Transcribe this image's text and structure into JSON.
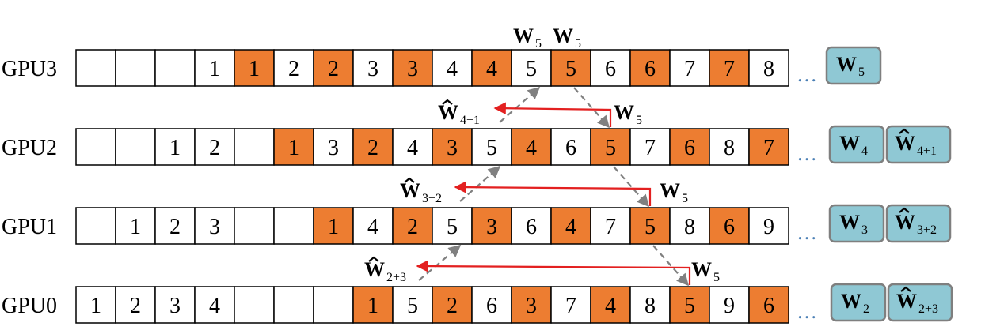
{
  "colors": {
    "orange": "#ed7d31",
    "white": "#ffffff",
    "teal_box": "#8fc8d4",
    "box_border": "#7f7f7f",
    "red_arrow": "#e32020",
    "gray_arrow": "#808080",
    "dots": "#4a7fb5"
  },
  "rows": [
    {
      "label": "GPU3",
      "cells": [
        {
          "t": "",
          "o": false
        },
        {
          "t": "",
          "o": false
        },
        {
          "t": "",
          "o": false
        },
        {
          "t": "1",
          "o": false
        },
        {
          "t": "1",
          "o": true
        },
        {
          "t": "2",
          "o": false
        },
        {
          "t": "2",
          "o": true
        },
        {
          "t": "3",
          "o": false
        },
        {
          "t": "3",
          "o": true
        },
        {
          "t": "4",
          "o": false
        },
        {
          "t": "4",
          "o": true
        },
        {
          "t": "5",
          "o": false
        },
        {
          "t": "5",
          "o": true
        },
        {
          "t": "6",
          "o": false
        },
        {
          "t": "6",
          "o": true
        },
        {
          "t": "7",
          "o": false
        },
        {
          "t": "7",
          "o": true
        },
        {
          "t": "8",
          "o": false
        }
      ],
      "dots": "…",
      "boxes": [
        {
          "hat": false,
          "w": "W",
          "sub": "5"
        }
      ]
    },
    {
      "label": "GPU2",
      "cells": [
        {
          "t": "",
          "o": false
        },
        {
          "t": "",
          "o": false
        },
        {
          "t": "1",
          "o": false
        },
        {
          "t": "2",
          "o": false
        },
        {
          "t": "",
          "o": false
        },
        {
          "t": "1",
          "o": true
        },
        {
          "t": "3",
          "o": false
        },
        {
          "t": "2",
          "o": true
        },
        {
          "t": "4",
          "o": false
        },
        {
          "t": "3",
          "o": true
        },
        {
          "t": "5",
          "o": false
        },
        {
          "t": "4",
          "o": true
        },
        {
          "t": "6",
          "o": false
        },
        {
          "t": "5",
          "o": true
        },
        {
          "t": "7",
          "o": false
        },
        {
          "t": "6",
          "o": true
        },
        {
          "t": "8",
          "o": false
        },
        {
          "t": "7",
          "o": true
        }
      ],
      "dots": "…",
      "boxes": [
        {
          "hat": false,
          "w": "W",
          "sub": "4"
        },
        {
          "hat": true,
          "w": "W",
          "sub": "4+1"
        }
      ]
    },
    {
      "label": "GPU1",
      "cells": [
        {
          "t": "",
          "o": false
        },
        {
          "t": "1",
          "o": false
        },
        {
          "t": "2",
          "o": false
        },
        {
          "t": "3",
          "o": false
        },
        {
          "t": "",
          "o": false
        },
        {
          "t": "",
          "o": false
        },
        {
          "t": "1",
          "o": true
        },
        {
          "t": "4",
          "o": false
        },
        {
          "t": "2",
          "o": true
        },
        {
          "t": "5",
          "o": false
        },
        {
          "t": "3",
          "o": true
        },
        {
          "t": "6",
          "o": false
        },
        {
          "t": "4",
          "o": true
        },
        {
          "t": "7",
          "o": false
        },
        {
          "t": "5",
          "o": true
        },
        {
          "t": "8",
          "o": false
        },
        {
          "t": "6",
          "o": true
        },
        {
          "t": "9",
          "o": false
        }
      ],
      "dots": "…",
      "boxes": [
        {
          "hat": false,
          "w": "W",
          "sub": "3"
        },
        {
          "hat": true,
          "w": "W",
          "sub": "3+2"
        }
      ]
    },
    {
      "label": "GPU0",
      "cells": [
        {
          "t": "1",
          "o": false
        },
        {
          "t": "2",
          "o": false
        },
        {
          "t": "3",
          "o": false
        },
        {
          "t": "4",
          "o": false
        },
        {
          "t": "",
          "o": false
        },
        {
          "t": "",
          "o": false
        },
        {
          "t": "",
          "o": false
        },
        {
          "t": "1",
          "o": true
        },
        {
          "t": "5",
          "o": false
        },
        {
          "t": "2",
          "o": true
        },
        {
          "t": "6",
          "o": false
        },
        {
          "t": "3",
          "o": true
        },
        {
          "t": "7",
          "o": false
        },
        {
          "t": "4",
          "o": true
        },
        {
          "t": "8",
          "o": false
        },
        {
          "t": "5",
          "o": true
        },
        {
          "t": "9",
          "o": false
        },
        {
          "t": "6",
          "o": true
        }
      ],
      "dots": "…",
      "boxes": [
        {
          "hat": false,
          "w": "W",
          "sub": "2"
        },
        {
          "hat": true,
          "w": "W",
          "sub": "2+3"
        }
      ]
    }
  ],
  "annotations": [
    {
      "hat": false,
      "w": "W",
      "sub": "5"
    },
    {
      "hat": false,
      "w": "W",
      "sub": "5"
    },
    {
      "hat": true,
      "w": "W",
      "sub": "4+1"
    },
    {
      "hat": false,
      "w": "W",
      "sub": "5"
    },
    {
      "hat": true,
      "w": "W",
      "sub": "3+2"
    },
    {
      "hat": false,
      "w": "W",
      "sub": "5"
    },
    {
      "hat": true,
      "w": "W",
      "sub": "2+3"
    },
    {
      "hat": false,
      "w": "W",
      "sub": "5"
    }
  ]
}
